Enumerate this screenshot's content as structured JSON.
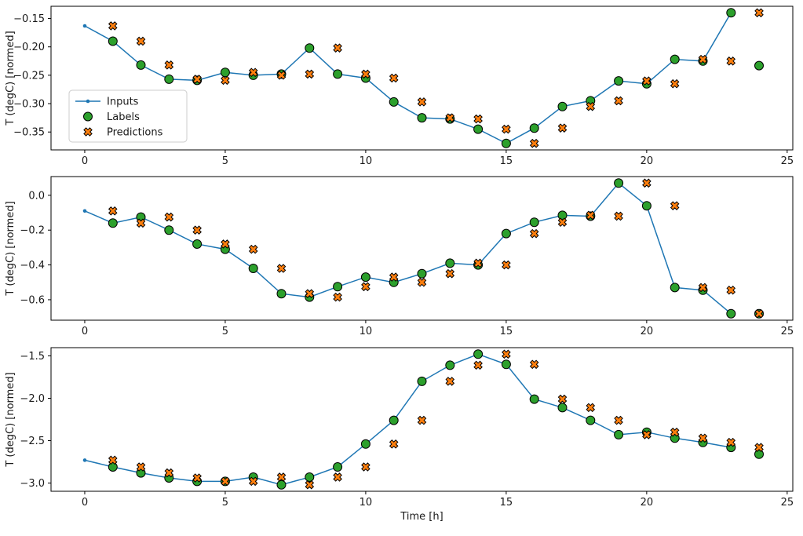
{
  "figure": {
    "background": "#ffffff",
    "xlabel": "Time [h]",
    "ylabel": "T (degC) [normed]",
    "colors": {
      "inputs": "#1f77b4",
      "labels": "#2ca02c",
      "predictions": "#ff7f0e",
      "marker_edge": "#000000",
      "text": "#1a1a1a",
      "spine": "#000000",
      "legend_border": "#cccccc"
    },
    "legend": {
      "position": "left-center-of-top-subplot",
      "items": [
        {
          "label": "Inputs",
          "marker": "line-dot",
          "color": "#1f77b4"
        },
        {
          "label": "Labels",
          "marker": "circle",
          "color": "#2ca02c"
        },
        {
          "label": "Predictions",
          "marker": "X",
          "color": "#ff7f0e"
        }
      ]
    }
  },
  "chart_data": [
    {
      "type": "line",
      "title": "",
      "xlabel": "",
      "ylabel": "T (degC) [normed]",
      "grid": false,
      "xlim": [
        -1.2,
        25.2
      ],
      "ylim": [
        -0.3815,
        -0.1285
      ],
      "xticks": [
        0,
        5,
        10,
        15,
        20,
        25
      ],
      "xtick_labels": [
        "0",
        "5",
        "10",
        "15",
        "20",
        "25"
      ],
      "yticks": [
        -0.15,
        -0.2,
        -0.25,
        -0.3,
        -0.35
      ],
      "ytick_labels": [
        "−0.15",
        "−0.20",
        "−0.25",
        "−0.30",
        "−0.35"
      ],
      "series": [
        {
          "name": "Inputs",
          "type": "line",
          "marker": "dot",
          "x": [
            0,
            1,
            2,
            3,
            4,
            5,
            6,
            7,
            8,
            9,
            10,
            11,
            12,
            13,
            14,
            15,
            16,
            17,
            18,
            19,
            20,
            21,
            22,
            23
          ],
          "values": [
            -0.163,
            -0.19,
            -0.232,
            -0.257,
            -0.259,
            -0.245,
            -0.25,
            -0.248,
            -0.202,
            -0.248,
            -0.255,
            -0.297,
            -0.325,
            -0.327,
            -0.345,
            -0.37,
            -0.343,
            -0.305,
            -0.295,
            -0.26,
            -0.265,
            -0.222,
            -0.225,
            -0.14
          ]
        },
        {
          "name": "Labels",
          "type": "scatter",
          "marker": "circle",
          "x": [
            1,
            2,
            3,
            4,
            5,
            6,
            7,
            8,
            9,
            10,
            11,
            12,
            13,
            14,
            15,
            16,
            17,
            18,
            19,
            20,
            21,
            22,
            23,
            24
          ],
          "values": [
            -0.19,
            -0.232,
            -0.257,
            -0.259,
            -0.245,
            -0.25,
            -0.248,
            -0.202,
            -0.248,
            -0.255,
            -0.297,
            -0.325,
            -0.327,
            -0.345,
            -0.37,
            -0.343,
            -0.305,
            -0.295,
            -0.26,
            -0.265,
            -0.222,
            -0.225,
            -0.14,
            -0.233
          ]
        },
        {
          "name": "Predictions",
          "type": "scatter",
          "marker": "X",
          "x": [
            1,
            2,
            3,
            4,
            5,
            6,
            7,
            8,
            9,
            10,
            11,
            12,
            13,
            14,
            15,
            16,
            17,
            18,
            19,
            20,
            21,
            22,
            23,
            24
          ],
          "values": [
            -0.163,
            -0.19,
            -0.232,
            -0.257,
            -0.259,
            -0.245,
            -0.25,
            -0.248,
            -0.202,
            -0.248,
            -0.255,
            -0.297,
            -0.325,
            -0.327,
            -0.345,
            -0.37,
            -0.343,
            -0.305,
            -0.295,
            -0.26,
            -0.265,
            -0.222,
            -0.225,
            -0.14
          ]
        }
      ]
    },
    {
      "type": "line",
      "title": "",
      "xlabel": "",
      "ylabel": "T (degC) [normed]",
      "grid": false,
      "xlim": [
        -1.2,
        25.2
      ],
      "ylim": [
        -0.7175,
        0.1075
      ],
      "xticks": [
        0,
        5,
        10,
        15,
        20,
        25
      ],
      "xtick_labels": [
        "0",
        "5",
        "10",
        "15",
        "20",
        "25"
      ],
      "yticks": [
        0.0,
        -0.2,
        -0.4,
        -0.6
      ],
      "ytick_labels": [
        "0.0",
        "−0.2",
        "−0.4",
        "−0.6"
      ],
      "series": [
        {
          "name": "Inputs",
          "type": "line",
          "marker": "dot",
          "x": [
            0,
            1,
            2,
            3,
            4,
            5,
            6,
            7,
            8,
            9,
            10,
            11,
            12,
            13,
            14,
            15,
            16,
            17,
            18,
            19,
            20,
            21,
            22,
            23
          ],
          "values": [
            -0.09,
            -0.16,
            -0.125,
            -0.2,
            -0.28,
            -0.31,
            -0.42,
            -0.565,
            -0.585,
            -0.525,
            -0.47,
            -0.5,
            -0.45,
            -0.39,
            -0.4,
            -0.22,
            -0.155,
            -0.115,
            -0.12,
            0.07,
            -0.06,
            -0.53,
            -0.545,
            -0.68
          ]
        },
        {
          "name": "Labels",
          "type": "scatter",
          "marker": "circle",
          "x": [
            1,
            2,
            3,
            4,
            5,
            6,
            7,
            8,
            9,
            10,
            11,
            12,
            13,
            14,
            15,
            16,
            17,
            18,
            19,
            20,
            21,
            22,
            23,
            24
          ],
          "values": [
            -0.16,
            -0.125,
            -0.2,
            -0.28,
            -0.31,
            -0.42,
            -0.565,
            -0.585,
            -0.525,
            -0.47,
            -0.5,
            -0.45,
            -0.39,
            -0.4,
            -0.22,
            -0.155,
            -0.115,
            -0.12,
            0.07,
            -0.06,
            -0.53,
            -0.545,
            -0.68,
            -0.68
          ]
        },
        {
          "name": "Predictions",
          "type": "scatter",
          "marker": "X",
          "x": [
            1,
            2,
            3,
            4,
            5,
            6,
            7,
            8,
            9,
            10,
            11,
            12,
            13,
            14,
            15,
            16,
            17,
            18,
            19,
            20,
            21,
            22,
            23,
            24
          ],
          "values": [
            -0.09,
            -0.16,
            -0.125,
            -0.2,
            -0.28,
            -0.31,
            -0.42,
            -0.565,
            -0.585,
            -0.525,
            -0.47,
            -0.5,
            -0.45,
            -0.39,
            -0.4,
            -0.22,
            -0.155,
            -0.115,
            -0.12,
            0.07,
            -0.06,
            -0.53,
            -0.545,
            -0.68
          ]
        }
      ]
    },
    {
      "type": "line",
      "title": "",
      "xlabel": "Time [h]",
      "ylabel": "T (degC) [normed]",
      "grid": false,
      "xlim": [
        -1.2,
        25.2
      ],
      "ylim": [
        -3.097,
        -1.403
      ],
      "xticks": [
        0,
        5,
        10,
        15,
        20,
        25
      ],
      "xtick_labels": [
        "0",
        "5",
        "10",
        "15",
        "20",
        "25"
      ],
      "yticks": [
        -1.5,
        -2.0,
        -2.5,
        -3.0
      ],
      "ytick_labels": [
        "−1.5",
        "−2.0",
        "−2.5",
        "−3.0"
      ],
      "series": [
        {
          "name": "Inputs",
          "type": "line",
          "marker": "dot",
          "x": [
            0,
            1,
            2,
            3,
            4,
            5,
            6,
            7,
            8,
            9,
            10,
            11,
            12,
            13,
            14,
            15,
            16,
            17,
            18,
            19,
            20,
            21,
            22,
            23
          ],
          "values": [
            -2.73,
            -2.81,
            -2.88,
            -2.94,
            -2.98,
            -2.98,
            -2.93,
            -3.02,
            -2.93,
            -2.81,
            -2.54,
            -2.26,
            -1.8,
            -1.61,
            -1.48,
            -1.6,
            -2.01,
            -2.11,
            -2.26,
            -2.43,
            -2.4,
            -2.47,
            -2.52,
            -2.58
          ]
        },
        {
          "name": "Labels",
          "type": "scatter",
          "marker": "circle",
          "x": [
            1,
            2,
            3,
            4,
            5,
            6,
            7,
            8,
            9,
            10,
            11,
            12,
            13,
            14,
            15,
            16,
            17,
            18,
            19,
            20,
            21,
            22,
            23,
            24
          ],
          "values": [
            -2.81,
            -2.88,
            -2.94,
            -2.98,
            -2.98,
            -2.93,
            -3.02,
            -2.93,
            -2.81,
            -2.54,
            -2.26,
            -1.8,
            -1.61,
            -1.48,
            -1.6,
            -2.01,
            -2.11,
            -2.26,
            -2.43,
            -2.4,
            -2.47,
            -2.52,
            -2.58,
            -2.66
          ]
        },
        {
          "name": "Predictions",
          "type": "scatter",
          "marker": "X",
          "x": [
            1,
            2,
            3,
            4,
            5,
            6,
            7,
            8,
            9,
            10,
            11,
            12,
            13,
            14,
            15,
            16,
            17,
            18,
            19,
            20,
            21,
            22,
            23,
            24
          ],
          "values": [
            -2.73,
            -2.81,
            -2.88,
            -2.94,
            -2.98,
            -2.98,
            -2.93,
            -3.02,
            -2.93,
            -2.81,
            -2.54,
            -2.26,
            -1.8,
            -1.61,
            -1.48,
            -1.6,
            -2.01,
            -2.11,
            -2.26,
            -2.43,
            -2.4,
            -2.47,
            -2.52,
            -2.58
          ]
        }
      ]
    }
  ]
}
